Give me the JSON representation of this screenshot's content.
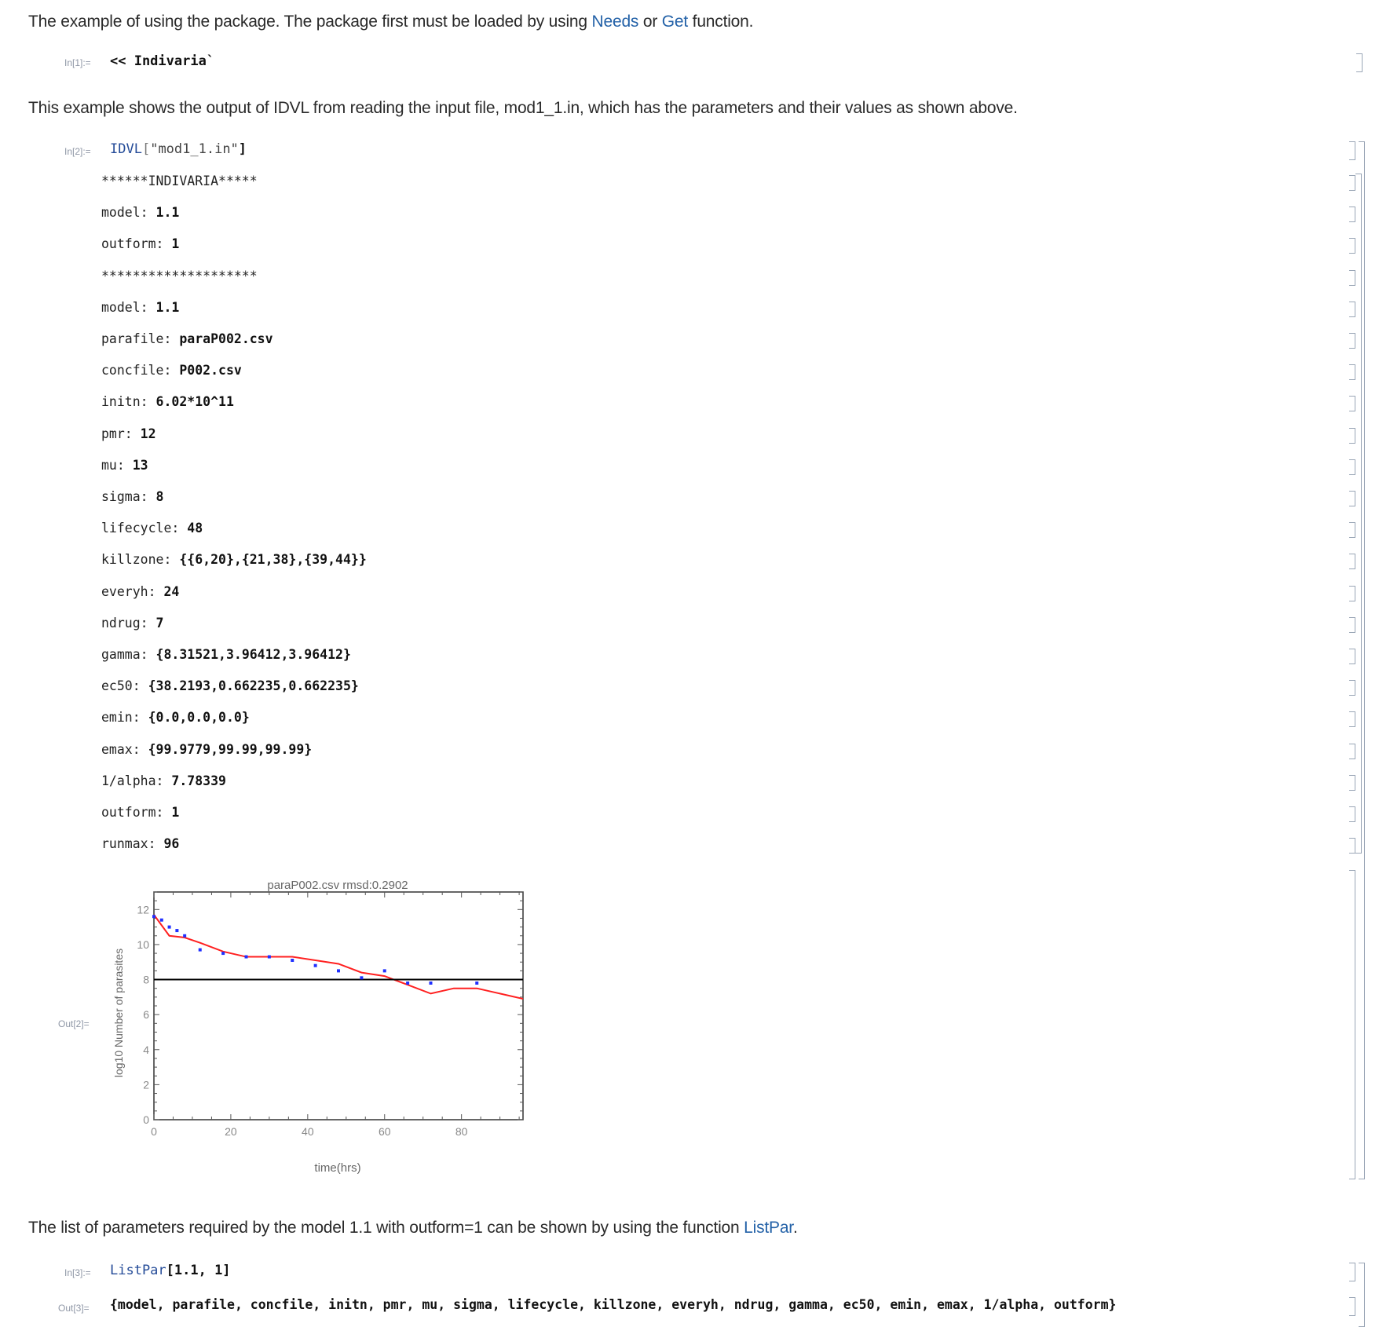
{
  "cells": {
    "intro_text": {
      "pre": "The example of using the package. The package first must be loaded by using ",
      "link1": "Needs",
      "mid": " or ",
      "link2": "Get",
      "post": " function."
    },
    "in1": {
      "label": "In[1]:=",
      "code": "<< Indivaria`"
    },
    "text2": "This example shows the output of IDVL from reading the input file, mod1_1.in, which has the parameters and their values as shown above.",
    "in2": {
      "label": "In[2]:=",
      "fn": "IDVL",
      "open": "[",
      "arg": "\"mod1_1.in\"",
      "close": "]"
    },
    "print_lines": [
      {
        "key": "******INDIVARIA*****",
        "value": ""
      },
      {
        "key": "model: ",
        "value": "1.1"
      },
      {
        "key": "outform: ",
        "value": "1"
      },
      {
        "key": "********************",
        "value": ""
      },
      {
        "key": "model: ",
        "value": "1.1"
      },
      {
        "key": "parafile: ",
        "value": "paraP002.csv"
      },
      {
        "key": "concfile: ",
        "value": "P002.csv"
      },
      {
        "key": "initn: ",
        "value": "6.02*10^11"
      },
      {
        "key": "pmr: ",
        "value": "12"
      },
      {
        "key": "mu: ",
        "value": "13"
      },
      {
        "key": "sigma: ",
        "value": "8"
      },
      {
        "key": "lifecycle: ",
        "value": "48"
      },
      {
        "key": "killzone: ",
        "value": "{{6,20},{21,38},{39,44}}"
      },
      {
        "key": "everyh: ",
        "value": "24"
      },
      {
        "key": "ndrug: ",
        "value": "7"
      },
      {
        "key": "gamma: ",
        "value": "{8.31521,3.96412,3.96412}"
      },
      {
        "key": "ec50: ",
        "value": "{38.2193,0.662235,0.662235}"
      },
      {
        "key": "emin: ",
        "value": "{0.0,0.0,0.0}"
      },
      {
        "key": "emax: ",
        "value": "{99.9779,99.99,99.99}"
      },
      {
        "key": "1/alpha: ",
        "value": "7.78339"
      },
      {
        "key": "outform: ",
        "value": "1"
      },
      {
        "key": "runmax: ",
        "value": "96"
      }
    ],
    "out2_label": "Out[2]=",
    "text3": {
      "pre": "The list of parameters required by the model 1.1 with outform=1 can be shown by using the function ",
      "link": "ListPar",
      "post": "."
    },
    "in3": {
      "label": "In[3]:=",
      "fn": "ListPar",
      "args": "[1.1, 1]"
    },
    "out3": {
      "label": "Out[3]=",
      "value": "{model, parafile, concfile, initn, pmr, mu, sigma, lifecycle, killzone, everyh, ndrug, gamma, ec50, emin, emax, 1/alpha, outform}"
    }
  },
  "chart_data": {
    "type": "line",
    "title": "paraP002.csv rmsd:0.2902",
    "xlabel": "time(hrs)",
    "ylabel": "log10 Number of parasites",
    "xlim": [
      0,
      96
    ],
    "ylim": [
      0,
      13
    ],
    "xticks": [
      0,
      20,
      40,
      60,
      80
    ],
    "yticks": [
      0,
      2,
      4,
      6,
      8,
      10,
      12
    ],
    "threshold": 8,
    "colors": {
      "line": "#ff2020",
      "points": "#2030ff",
      "threshold": "#000000"
    },
    "series": [
      {
        "kind": "line",
        "x": [
          0,
          4,
          8,
          12,
          18,
          24,
          30,
          36,
          42,
          48,
          54,
          60,
          66,
          72,
          78,
          84,
          90,
          96
        ],
        "y": [
          11.7,
          10.5,
          10.4,
          10.1,
          9.6,
          9.3,
          9.3,
          9.3,
          9.1,
          8.9,
          8.4,
          8.2,
          7.7,
          7.2,
          7.5,
          7.5,
          7.2,
          6.9
        ]
      },
      {
        "kind": "scatter",
        "x": [
          0,
          2,
          4,
          6,
          8,
          12,
          18,
          24,
          30,
          36,
          42,
          48,
          54,
          60,
          66,
          72,
          84
        ],
        "y": [
          11.6,
          11.4,
          11.0,
          10.8,
          10.5,
          9.7,
          9.5,
          9.3,
          9.3,
          9.1,
          8.8,
          8.5,
          8.1,
          8.5,
          7.8,
          7.8,
          7.8
        ]
      }
    ]
  }
}
